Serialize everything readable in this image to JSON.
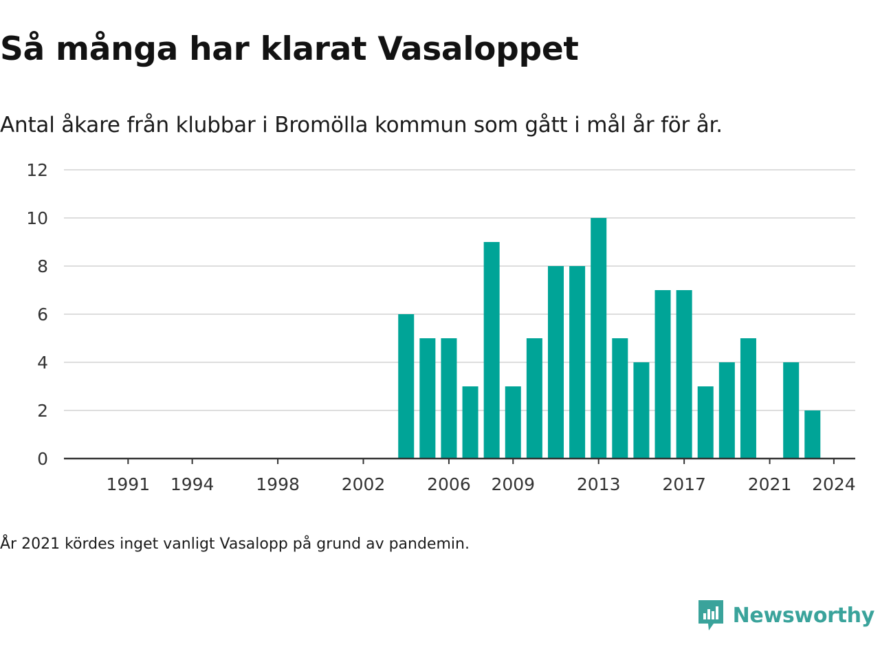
{
  "title": "Så många har klarat Vasaloppet",
  "subtitle": "Antal åkare från klubbar i Bromölla kommun som gått i mål år för år.",
  "footnote": "År 2021 kördes inget vanligt Vasalopp på grund av pandemin.",
  "brand": {
    "name": "Newsworthy",
    "icon": "newsworthy-logo-icon",
    "color": "#3aa39b"
  },
  "colors": {
    "bar": "#00a497",
    "grid": "#dddddd",
    "axis": "#333333",
    "tick_text": "#333333"
  },
  "chart_data": {
    "type": "bar",
    "title": "Så många har klarat Vasaloppet",
    "subtitle": "Antal åkare från klubbar i Bromölla kommun som gått i mål år för år.",
    "xlabel": "",
    "ylabel": "",
    "x_range": [
      1988,
      2025
    ],
    "ylim": [
      0,
      12
    ],
    "y_ticks": [
      0,
      2,
      4,
      6,
      8,
      10,
      12
    ],
    "x_ticks": [
      1991,
      1994,
      1998,
      2002,
      2006,
      2009,
      2013,
      2017,
      2021,
      2024
    ],
    "grid": true,
    "legend": "none",
    "categories": [
      2004,
      2005,
      2006,
      2007,
      2008,
      2009,
      2010,
      2011,
      2012,
      2013,
      2014,
      2015,
      2016,
      2017,
      2018,
      2019,
      2020,
      2022,
      2023
    ],
    "values": [
      6,
      5,
      5,
      3,
      9,
      3,
      5,
      8,
      8,
      10,
      5,
      4,
      7,
      7,
      3,
      4,
      5,
      4,
      2
    ]
  }
}
